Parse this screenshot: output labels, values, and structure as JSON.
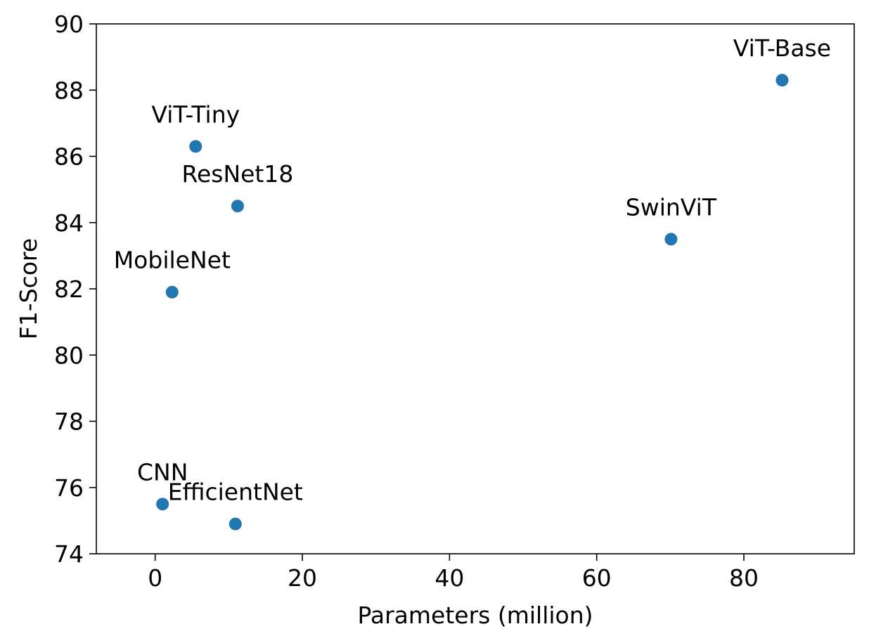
{
  "chart_data": {
    "type": "scatter",
    "title": "",
    "xlabel": "Parameters (million)",
    "ylabel": "F1-Score",
    "xlim": [
      -8,
      95
    ],
    "ylim": [
      74,
      90
    ],
    "xticks": [
      0,
      20,
      40,
      60,
      80
    ],
    "yticks": [
      74,
      76,
      78,
      80,
      82,
      84,
      86,
      88,
      90
    ],
    "grid": false,
    "legend": "none",
    "marker_color": "#1f77b4",
    "points": [
      {
        "label": "CNN",
        "x": 1.0,
        "y": 75.5
      },
      {
        "label": "EfficientNet",
        "x": 10.9,
        "y": 74.9
      },
      {
        "label": "MobileNet",
        "x": 2.3,
        "y": 81.9
      },
      {
        "label": "ResNet18",
        "x": 11.2,
        "y": 84.5
      },
      {
        "label": "ViT-Tiny",
        "x": 5.5,
        "y": 86.3
      },
      {
        "label": "SwinViT",
        "x": 70.1,
        "y": 83.5
      },
      {
        "label": "ViT-Base",
        "x": 85.2,
        "y": 88.3
      }
    ]
  }
}
